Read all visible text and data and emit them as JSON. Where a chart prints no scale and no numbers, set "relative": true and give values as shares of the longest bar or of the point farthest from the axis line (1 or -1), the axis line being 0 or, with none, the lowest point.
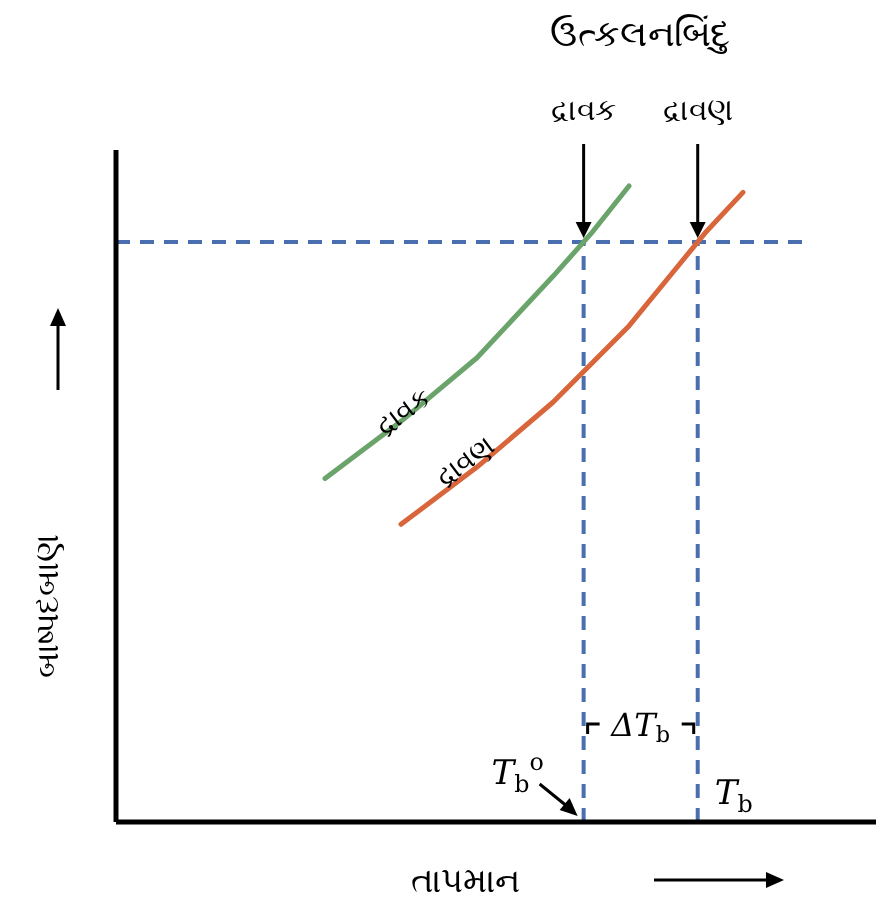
{
  "chart_data": {
    "type": "line",
    "relative": true,
    "xlabel": "તાપમાન",
    "ylabel": "બાષ્પદબાણ",
    "line_style": "solid",
    "categories": [
      null,
      null,
      null,
      null,
      null,
      null,
      null,
      null,
      null,
      null,
      null,
      null,
      null,
      null,
      null,
      null,
      null,
      null,
      null,
      null
    ],
    "series": [
      {
        "name": "દ્રાવક",
        "color": "#6aa46a",
        "values": [
          null,
          null,
          null,
          null,
          null,
          0.54,
          null,
          0.63,
          null,
          0.73,
          null,
          0.858,
          0.925,
          1.0,
          null,
          null,
          null,
          null,
          null,
          null
        ]
      },
      {
        "name": "દ્રાવણ",
        "color": "#d9653b",
        "values": [
          null,
          null,
          null,
          null,
          null,
          null,
          null,
          0.468,
          null,
          0.558,
          null,
          0.66,
          null,
          0.78,
          0.853,
          0.926,
          0.99,
          null,
          null,
          null
        ]
      }
    ],
    "ref_lines": [
      {
        "axis": "y",
        "value": 0.912,
        "label": null,
        "color": "#4a6fb0",
        "line_style": "dashed"
      }
    ],
    "annotations": [
      "ઉત્કલનબિંદુ",
      "દ્રાવક",
      "દ્રાવણ",
      "ΔT$_{b}$",
      "T$_{b}$$^{o}$",
      "T$_{b}$"
    ]
  }
}
